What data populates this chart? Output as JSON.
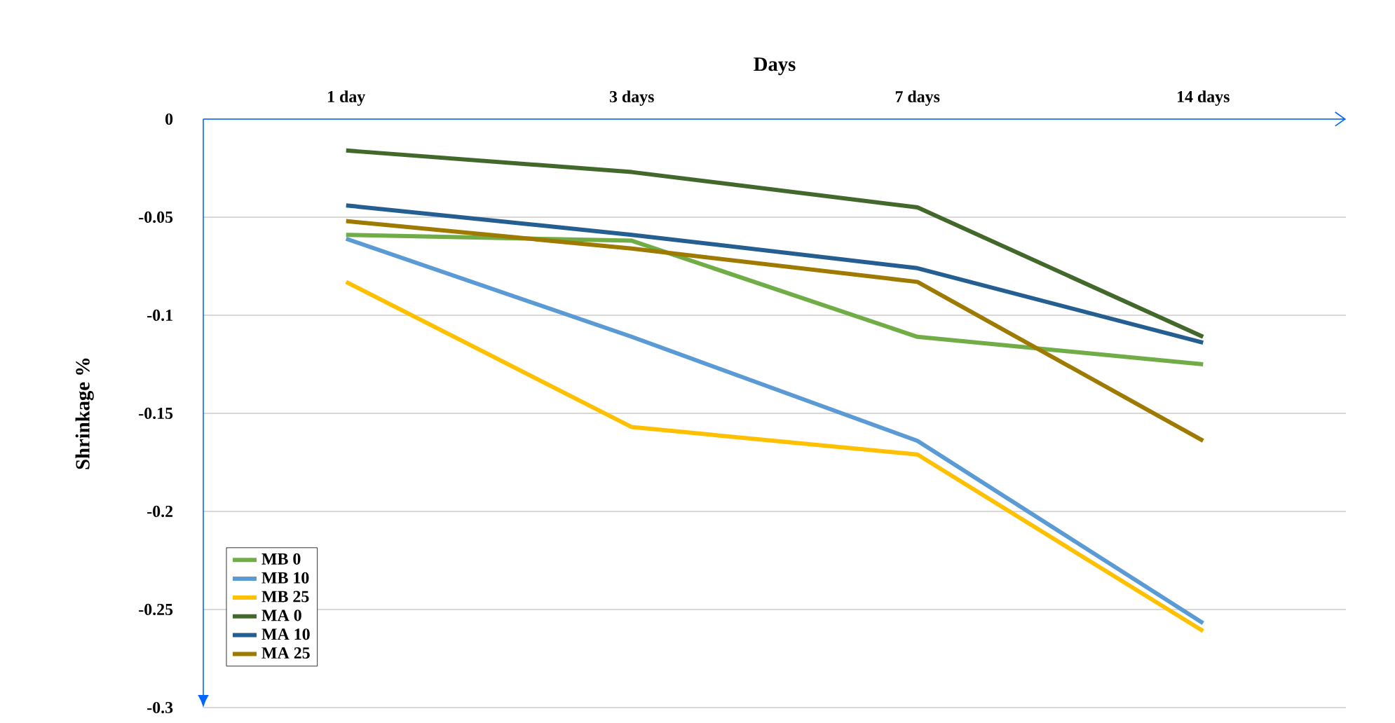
{
  "chart_data": {
    "type": "line",
    "xlabel": "Days",
    "ylabel": "Shrinkage %",
    "categories": [
      "1 day",
      "3 days",
      "7 days",
      "14 days"
    ],
    "ylim": [
      -0.3,
      0
    ],
    "yticks": [
      -0.3,
      -0.25,
      -0.2,
      -0.15,
      -0.1,
      -0.05,
      0
    ],
    "grid": "y",
    "legend": "bottom left",
    "marker": "none",
    "line_style": "solid",
    "series": [
      {
        "name": "MB 0",
        "color": "#70ad47",
        "values": [
          -0.059,
          -0.062,
          -0.111,
          -0.125
        ]
      },
      {
        "name": "MB 10",
        "color": "#5b9bd5",
        "values": [
          -0.061,
          -0.111,
          -0.164,
          -0.257
        ]
      },
      {
        "name": "MB 25",
        "color": "#ffc000",
        "values": [
          -0.083,
          -0.157,
          -0.171,
          -0.261
        ]
      },
      {
        "name": "MA 0",
        "color": "#43682b",
        "values": [
          -0.016,
          -0.027,
          -0.045,
          -0.111
        ]
      },
      {
        "name": "MA 10",
        "color": "#255e91",
        "values": [
          -0.044,
          -0.059,
          -0.076,
          -0.114
        ]
      },
      {
        "name": "MA 25",
        "color": "#9e7a00",
        "values": [
          -0.052,
          -0.066,
          -0.083,
          -0.164
        ]
      }
    ]
  }
}
